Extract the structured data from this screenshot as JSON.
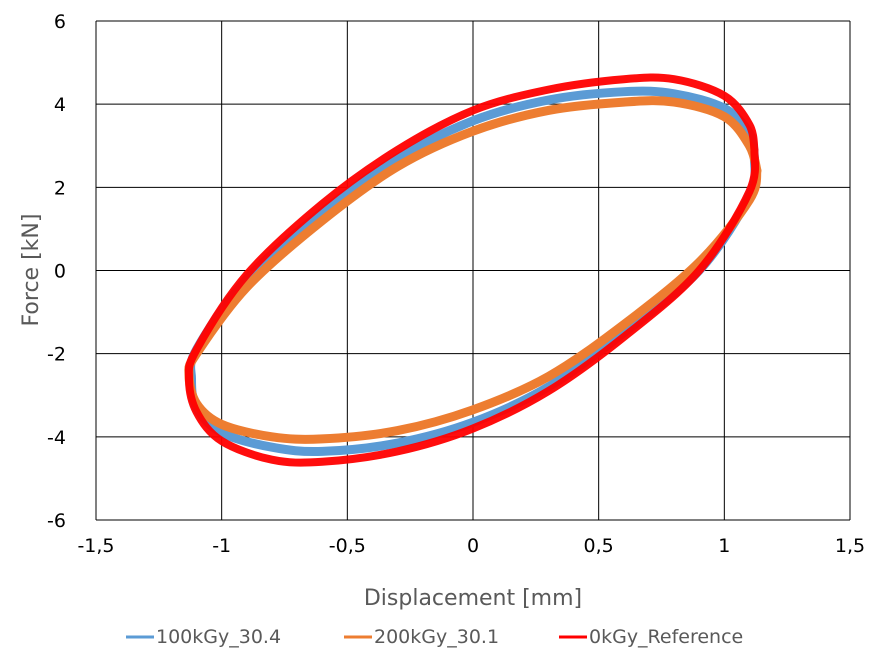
{
  "chart_data": {
    "type": "line",
    "title": "",
    "xlabel": "Displacement [mm]",
    "ylabel": "Force [kN]",
    "xlim": [
      -1.5,
      1.5
    ],
    "ylim": [
      -6,
      6
    ],
    "xticks": [
      -1.5,
      -1,
      -0.5,
      0,
      0.5,
      1,
      1.5
    ],
    "yticks": [
      -6,
      -4,
      -2,
      0,
      2,
      4,
      6
    ],
    "xtick_labels": [
      "-1,5",
      "-1",
      "-0,5",
      "0",
      "0,5",
      "1",
      "1,5"
    ],
    "ytick_labels": [
      "-6",
      "-4",
      "-2",
      "0",
      "2",
      "4",
      "6"
    ],
    "grid": true,
    "legend_position": "bottom",
    "series": [
      {
        "name": "100kGy_30.4",
        "color": "#5B9BD5",
        "x": [
          1.12,
          1.1,
          1.0,
          0.8,
          0.6,
          0.3,
          0.0,
          -0.3,
          -0.6,
          -0.9,
          -1.1,
          -1.12,
          -1.1,
          -1.0,
          -0.8,
          -0.6,
          -0.3,
          0.0,
          0.3,
          0.6,
          0.9,
          1.1,
          1.12
        ],
        "y": [
          2.7,
          3.3,
          3.9,
          4.25,
          4.3,
          4.1,
          3.6,
          2.7,
          1.4,
          -0.2,
          -1.9,
          -2.6,
          -3.3,
          -3.9,
          -4.25,
          -4.35,
          -4.15,
          -3.65,
          -2.8,
          -1.5,
          0.0,
          1.8,
          2.7
        ]
      },
      {
        "name": "200kGy_30.1",
        "color": "#ED7D31",
        "x": [
          1.13,
          1.1,
          1.0,
          0.8,
          0.6,
          0.3,
          0.0,
          -0.3,
          -0.6,
          -0.9,
          -1.1,
          -1.13,
          -1.1,
          -1.0,
          -0.8,
          -0.6,
          -0.3,
          0.0,
          0.3,
          0.6,
          0.9,
          1.1,
          1.13
        ],
        "y": [
          2.4,
          3.0,
          3.7,
          4.05,
          4.05,
          3.85,
          3.35,
          2.5,
          1.2,
          -0.4,
          -2.0,
          -2.5,
          -3.2,
          -3.7,
          -4.0,
          -4.05,
          -3.85,
          -3.35,
          -2.55,
          -1.3,
          0.2,
          1.7,
          2.4
        ]
      },
      {
        "name": "0kGy_Reference",
        "color": "#FF0000",
        "x": [
          1.12,
          1.1,
          1.0,
          0.8,
          0.6,
          0.3,
          0.0,
          -0.3,
          -0.6,
          -0.9,
          -1.1,
          -1.13,
          -1.1,
          -1.0,
          -0.8,
          -0.6,
          -0.3,
          0.0,
          0.3,
          0.6,
          0.9,
          1.1,
          1.12
        ],
        "y": [
          2.9,
          3.5,
          4.2,
          4.6,
          4.6,
          4.35,
          3.85,
          2.9,
          1.6,
          -0.1,
          -1.9,
          -2.6,
          -3.4,
          -4.1,
          -4.55,
          -4.6,
          -4.35,
          -3.8,
          -2.9,
          -1.6,
          0.0,
          1.9,
          2.9
        ]
      }
    ]
  }
}
